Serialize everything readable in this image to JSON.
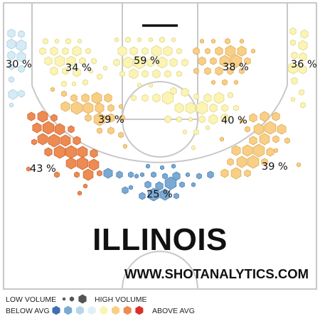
{
  "chart_data": {
    "type": "heatmap",
    "title": "ILLINOIS",
    "watermark": "WWW.SHOTANALYTICS.COM",
    "zones": [
      {
        "zone": "left corner three",
        "fg_pct_label": "30 %",
        "fg_pct": 30,
        "color": "#d6ebf5"
      },
      {
        "zone": "left wing three",
        "fg_pct_label": "34 %",
        "fg_pct": 34,
        "color": "#fbf4b4"
      },
      {
        "zone": "top of key three",
        "fg_pct_label": "59 %",
        "fg_pct": 59,
        "color": "#fbf4b4"
      },
      {
        "zone": "right wing three",
        "fg_pct_label": "38 %",
        "fg_pct": 38,
        "color": "#f8cf85"
      },
      {
        "zone": "right corner three",
        "fg_pct_label": "36 %",
        "fg_pct": 36,
        "color": "#fbf4b4"
      },
      {
        "zone": "left mid-range",
        "fg_pct_label": "39 %",
        "fg_pct": 39,
        "color": "#f8cf85"
      },
      {
        "zone": "right mid-range",
        "fg_pct_label": "40 %",
        "fg_pct": 40,
        "color": "#fbf4b4"
      },
      {
        "zone": "left baseline",
        "fg_pct_label": "43 %",
        "fg_pct": 43,
        "color": "#ee8b52"
      },
      {
        "zone": "right baseline",
        "fg_pct_label": "39 %",
        "fg_pct": 39,
        "color": "#f8cf85"
      },
      {
        "zone": "restricted area",
        "fg_pct_label": "25 %",
        "fg_pct": 25,
        "color": "#7aa9d4"
      }
    ],
    "legend": {
      "volume": {
        "low_label": "LOW VOLUME",
        "high_label": "HIGH VOLUME"
      },
      "efficiency": {
        "below_label": "BELOW AVG",
        "above_label": "ABOVE AVG",
        "colors": [
          "#3e6fb0",
          "#7aa9d4",
          "#b5d6ec",
          "#e0f0f6",
          "#fbf4b4",
          "#f8cf85",
          "#ee8b52",
          "#d9302a"
        ]
      }
    }
  }
}
